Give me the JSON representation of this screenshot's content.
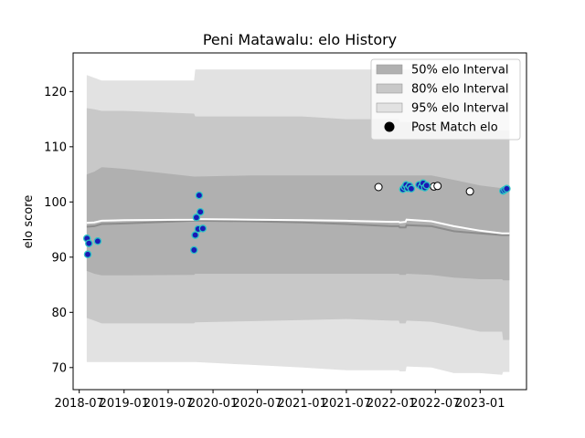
{
  "chart_data": {
    "type": "line",
    "title": "Peni Matawalu: elo History",
    "xlabel": "",
    "ylabel": "elo score",
    "xlim": [
      "2018-06-06",
      "2023-07-10"
    ],
    "ylim": [
      66,
      127
    ],
    "yticks": [
      70,
      80,
      90,
      100,
      110,
      120
    ],
    "xticks": [
      "2018-07",
      "2019-01",
      "2019-07",
      "2020-01",
      "2020-07",
      "2021-01",
      "2021-07",
      "2022-01",
      "2022-07",
      "2023-01"
    ],
    "grid": false,
    "legend": {
      "placement": "top-right",
      "entries": [
        {
          "label": "50% elo Interval",
          "color": "#b0b0b0"
        },
        {
          "label": "80% elo Interval",
          "color": "#c8c8c8"
        },
        {
          "label": "95% elo Interval",
          "color": "#e2e2e2"
        },
        {
          "label": "Post Match elo",
          "color": "#000000"
        }
      ]
    },
    "colors": {
      "band95": "#e2e2e2",
      "band80": "#c8c8c8",
      "band50": "#b0b0b0",
      "median_line": "#8c8c8c",
      "mean_line": "#ffffff",
      "point_played_fill": "#1a1ab5",
      "point_played_edge": "#2ec4c4",
      "point_other_fill": "#ffffff",
      "point_other_edge": "#000000"
    },
    "bands": {
      "x": [
        "2018-08-01",
        "2018-09-01",
        "2018-10-01",
        "2019-01-01",
        "2019-10-15",
        "2019-10-20",
        "2020-06-01",
        "2021-01-01",
        "2021-07-01",
        "2022-01-01",
        "2022-02-01",
        "2022-02-05",
        "2022-03-01",
        "2022-03-05",
        "2022-06-15",
        "2022-09-15",
        "2023-01-01",
        "2023-04-01",
        "2023-04-05",
        "2023-05-01"
      ],
      "p95_low": [
        71,
        71,
        71,
        71,
        71,
        71,
        70.5,
        70,
        69.5,
        69.5,
        69.5,
        69.3,
        69.3,
        70.2,
        70,
        69,
        69,
        68.7,
        69.2,
        69.2
      ],
      "p95_high": [
        123,
        122.5,
        122,
        122,
        122,
        124,
        124,
        124,
        124,
        124,
        124,
        124,
        124,
        124,
        124,
        124,
        124,
        124,
        124,
        124
      ],
      "p80_low": [
        79,
        78.5,
        78,
        78,
        78,
        78.2,
        78.4,
        78.6,
        78.8,
        78.5,
        78.5,
        78,
        78,
        78.5,
        78.3,
        77.5,
        76.5,
        76.5,
        75,
        75
      ],
      "p80_high": [
        117,
        116.8,
        116.5,
        116.5,
        116,
        115.5,
        115.5,
        115.5,
        115,
        115,
        115,
        114.5,
        114.5,
        114.5,
        114.3,
        113.5,
        113,
        113,
        113,
        113
      ],
      "p50_low": [
        87.5,
        87,
        86.7,
        86.7,
        86.8,
        87,
        87,
        87,
        87,
        87,
        87,
        86.8,
        86.8,
        87,
        86.8,
        86.3,
        86,
        86,
        85.8,
        85.8
      ],
      "p50_high": [
        105,
        105.5,
        106.3,
        106,
        104.6,
        104.6,
        104.8,
        104.8,
        104.8,
        104.8,
        104.8,
        104.8,
        104.8,
        104.8,
        104.8,
        104,
        103,
        102.5,
        102.5,
        102.5
      ],
      "median": [
        95.5,
        95.6,
        96,
        96.1,
        96.6,
        96.6,
        96.5,
        96.3,
        96,
        95.6,
        95.6,
        95.4,
        95.4,
        95.8,
        95.6,
        94.7,
        94.3,
        94.0,
        94.0,
        94.0
      ],
      "mean": [
        96.2,
        96.3,
        96.6,
        96.7,
        96.8,
        96.9,
        96.8,
        96.7,
        96.6,
        96.4,
        96.4,
        96.3,
        96.4,
        96.8,
        96.5,
        95.6,
        94.8,
        94.3,
        94.3,
        94.3
      ]
    },
    "points_played": [
      {
        "x": "2018-08-02",
        "y": 93.4
      },
      {
        "x": "2018-08-05",
        "y": 90.5
      },
      {
        "x": "2018-08-10",
        "y": 92.5
      },
      {
        "x": "2018-09-15",
        "y": 92.9
      },
      {
        "x": "2019-10-15",
        "y": 91.3
      },
      {
        "x": "2019-10-20",
        "y": 94.0
      },
      {
        "x": "2019-10-25",
        "y": 97.2
      },
      {
        "x": "2019-11-01",
        "y": 95.1
      },
      {
        "x": "2019-11-05",
        "y": 101.2
      },
      {
        "x": "2019-11-10",
        "y": 98.2
      },
      {
        "x": "2019-11-20",
        "y": 95.2
      },
      {
        "x": "2022-02-18",
        "y": 102.3
      },
      {
        "x": "2022-02-25",
        "y": 102.7
      },
      {
        "x": "2022-03-03",
        "y": 103.1
      },
      {
        "x": "2022-03-10",
        "y": 102.5
      },
      {
        "x": "2022-03-17",
        "y": 102.9
      },
      {
        "x": "2022-03-24",
        "y": 102.4
      },
      {
        "x": "2022-04-25",
        "y": 103.1
      },
      {
        "x": "2022-05-05",
        "y": 102.8
      },
      {
        "x": "2022-05-12",
        "y": 103.4
      },
      {
        "x": "2022-05-19",
        "y": 102.6
      },
      {
        "x": "2022-05-26",
        "y": 103.0
      },
      {
        "x": "2023-04-05",
        "y": 102.0
      },
      {
        "x": "2023-04-12",
        "y": 102.2
      },
      {
        "x": "2023-04-20",
        "y": 102.4
      }
    ],
    "points_other": [
      {
        "x": "2021-11-10",
        "y": 102.7
      },
      {
        "x": "2022-06-25",
        "y": 102.8
      },
      {
        "x": "2022-07-10",
        "y": 102.9
      },
      {
        "x": "2022-11-20",
        "y": 101.9
      }
    ]
  }
}
